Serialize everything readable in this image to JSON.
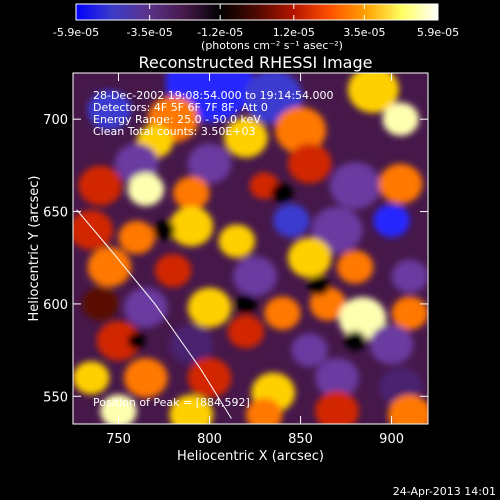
{
  "chart_data": {
    "type": "heatmap",
    "title": "Reconstructed RHESSI Image",
    "xlabel": "Heliocentric X (arcsec)",
    "ylabel": "Heliocentric Y (arcsec)",
    "xlim": [
      725,
      920
    ],
    "ylim": [
      535,
      725
    ],
    "x_ticks": [
      750,
      800,
      850,
      900
    ],
    "y_ticks": [
      550,
      600,
      650,
      700
    ],
    "colorbar": {
      "min": -5.9e-05,
      "max": 5.9e-05,
      "tick_labels": [
        "-5.9e-05",
        "-3.5e-05",
        "-1.2e-05",
        "1.2e-05",
        "3.5e-05",
        "5.9e-05"
      ],
      "tick_values": [
        -5.9e-05,
        -3.5e-05,
        -1.2e-05,
        1.2e-05,
        3.5e-05,
        5.9e-05
      ],
      "units": "(photons cm⁻² s⁻¹ asec⁻²)",
      "colors": [
        "#0000ff",
        "#3c3cc8",
        "#5a3288",
        "#46184a",
        "#000000",
        "#500a00",
        "#b41400",
        "#ff5000",
        "#ffa000",
        "#ffff60",
        "#ffffff"
      ]
    },
    "annotations": [
      "28-Dec-2002 19:08:54.000 to 19:14:54.000",
      "Detectors: 4F 5F 6F 7F 8F, Att 0",
      "Energy Range: 25.0 - 50.0 keV",
      "Clean     Total counts: 3.50E+03"
    ],
    "peak_label": "Position of Peak = [884,592]",
    "peak_position": [
      884,
      592
    ],
    "limb_curve": [
      [
        727,
        651
      ],
      [
        745,
        630
      ],
      [
        770,
        600
      ],
      [
        795,
        565
      ],
      [
        812,
        538
      ]
    ]
  },
  "footer": {
    "timestamp": "24-Apr-2013 14:01"
  }
}
